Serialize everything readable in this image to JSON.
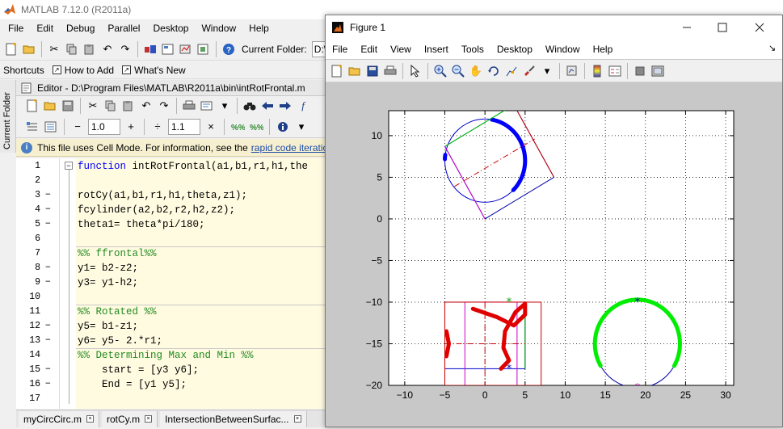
{
  "app": {
    "title": "MATLAB  7.12.0 (R2011a)",
    "menus": [
      "File",
      "Edit",
      "Debug",
      "Parallel",
      "Desktop",
      "Window",
      "Help"
    ],
    "current_folder_label": "Current Folder:",
    "current_folder_value": "D:\\"
  },
  "shortcuts": {
    "label": "Shortcuts",
    "how_to_add": "How to Add",
    "whats_new": "What's New"
  },
  "side_panel": {
    "label": "Current Folder"
  },
  "editor": {
    "title": "Editor - D:\\Program Files\\MATLAB\\R2011a\\bin\\intRotFrontal.m",
    "cell_minus": "−",
    "cell_value_1": "1.0",
    "cell_plus": "+",
    "cell_divide": "÷",
    "cell_value_2": "1.1",
    "cell_times": "×",
    "info_text": "This file uses Cell Mode. For information, see the",
    "info_link": "rapid code iteratio",
    "lines": [
      {
        "n": "1",
        "dash": "",
        "code": "function intRotFrontal(a1,b1,r1,h1,the",
        "type": "fn"
      },
      {
        "n": "2",
        "dash": "",
        "code": "",
        "type": "plain"
      },
      {
        "n": "3",
        "dash": "−",
        "code": "rotCy(a1,b1,r1,h1,theta,z1);",
        "type": "plain"
      },
      {
        "n": "4",
        "dash": "−",
        "code": "fcylinder(a2,b2,r2,h2,z2);",
        "type": "plain"
      },
      {
        "n": "5",
        "dash": "−",
        "code": "theta1= theta*pi/180;",
        "type": "plain"
      },
      {
        "n": "6",
        "dash": "",
        "code": "",
        "type": "plain"
      },
      {
        "n": "7",
        "dash": "",
        "code": "%% ffrontal%%",
        "type": "comment"
      },
      {
        "n": "8",
        "dash": "−",
        "code": "y1= b2-z2;",
        "type": "plain"
      },
      {
        "n": "9",
        "dash": "−",
        "code": "y3= y1-h2;",
        "type": "plain"
      },
      {
        "n": "10",
        "dash": "",
        "code": "",
        "type": "plain"
      },
      {
        "n": "11",
        "dash": "",
        "code": "%% Rotated %%",
        "type": "comment"
      },
      {
        "n": "12",
        "dash": "−",
        "code": "y5= b1-z1;",
        "type": "plain"
      },
      {
        "n": "13",
        "dash": "−",
        "code": "y6= y5- 2.*r1;",
        "type": "plain"
      },
      {
        "n": "14",
        "dash": "",
        "code": "%% Determining Max and Min %%",
        "type": "comment"
      },
      {
        "n": "15",
        "dash": "−",
        "code": "    start = [y3 y6];",
        "type": "plain"
      },
      {
        "n": "16",
        "dash": "−",
        "code": "    End = [y1 y5];",
        "type": "plain"
      },
      {
        "n": "17",
        "dash": "",
        "code": "",
        "type": "plain"
      }
    ],
    "tabs": [
      "myCircCirc.m",
      "rotCy.m",
      "IntersectionBetweenSurfac..."
    ]
  },
  "figure": {
    "title": "Figure 1",
    "menus": [
      "File",
      "Edit",
      "View",
      "Insert",
      "Tools",
      "Desktop",
      "Window",
      "Help"
    ],
    "chart_data": {
      "type": "line",
      "xlim": [
        -12,
        31
      ],
      "ylim": [
        -20,
        13
      ],
      "xticks": [
        -10,
        -5,
        0,
        5,
        10,
        15,
        20,
        25,
        30
      ],
      "yticks": [
        10,
        5,
        0,
        -5,
        -10,
        -15,
        -20
      ],
      "grid": "dotted",
      "series": [
        {
          "color": "#0000cc",
          "x_label": "",
          "shape": "circle",
          "center": [
            0,
            7
          ],
          "radius": 5
        },
        {
          "color": "#0000ff",
          "shape": "thick-arc",
          "center": [
            0,
            7
          ],
          "radius": 5,
          "from_deg": 80,
          "to_deg": -45
        },
        {
          "color": "#0000ff",
          "shape": "thick-arc",
          "center": [
            0,
            7
          ],
          "radius": 5,
          "from_deg": 178,
          "to_deg": 172
        },
        {
          "color": "#0000aa",
          "shape": "polygon",
          "points": [
            [
              0,
              0
            ],
            [
              8.6,
              5
            ],
            [
              3.6,
              13.7
            ],
            [
              -5,
              8.7
            ]
          ]
        },
        {
          "color": "#00cc00",
          "shape": "line",
          "points": [
            [
              -5,
              8.7
            ],
            [
              3.6,
              13.7
            ]
          ]
        },
        {
          "color": "#cc00cc",
          "shape": "line",
          "points": [
            [
              -5,
              8.7
            ],
            [
              0,
              0
            ]
          ]
        },
        {
          "color": "#cc0000",
          "shape": "dashdot",
          "points": [
            [
              -3.8,
              3.9
            ],
            [
              6.2,
              9.6
            ]
          ]
        },
        {
          "color": "#cc0000",
          "shape": "line",
          "points": [
            [
              3.6,
              13.7
            ],
            [
              8.6,
              5
            ]
          ]
        },
        {
          "color": "#0000cc",
          "shape": "rect",
          "points": [
            [
              -5,
              -10
            ],
            [
              5,
              -18
            ]
          ]
        },
        {
          "color": "#cc00cc",
          "shape": "rect",
          "points": [
            [
              -2.5,
              -10
            ],
            [
              4,
              -20
            ]
          ]
        },
        {
          "color": "#cc0000",
          "shape": "rect",
          "points": [
            [
              -5,
              -10
            ],
            [
              7,
              -20
            ]
          ]
        },
        {
          "color": "#00aa00",
          "shape": "line",
          "points": [
            [
              5,
              -10
            ],
            [
              5,
              -18
            ]
          ]
        },
        {
          "color": "#cc0000",
          "shape": "dashdot",
          "points": [
            [
              0,
              -10
            ],
            [
              0,
              -20
            ]
          ]
        },
        {
          "color": "#cc0000",
          "shape": "dashdot",
          "points": [
            [
              -5,
              -15
            ],
            [
              5,
              -15
            ]
          ]
        },
        {
          "color": "#e00000",
          "shape": "thick-curve",
          "points": [
            [
              -1.5,
              -10.8
            ],
            [
              1.5,
              -11.8
            ],
            [
              3.6,
              -12.8
            ],
            [
              5,
              -11.5
            ],
            [
              5,
              -10.2
            ],
            [
              3.8,
              -11.2
            ],
            [
              2.5,
              -13.5
            ],
            [
              2.3,
              -15.5
            ],
            [
              3,
              -17
            ],
            [
              2,
              -18
            ]
          ]
        },
        {
          "color": "#e00000",
          "shape": "thick-curve",
          "points": [
            [
              -4.8,
              -13.5
            ],
            [
              -4.5,
              -15
            ],
            [
              -4.8,
              -16.5
            ]
          ]
        },
        {
          "color": "#0000aa",
          "shape": "circle",
          "center": [
            19,
            -15
          ],
          "radius": 5.3
        },
        {
          "color": "#00ee00",
          "shape": "thick-arc",
          "center": [
            19,
            -15
          ],
          "radius": 5.3,
          "from_deg": 88,
          "to_deg": -30
        },
        {
          "color": "#00ee00",
          "shape": "thick-arc",
          "center": [
            19,
            -15
          ],
          "radius": 5.3,
          "from_deg": 92,
          "to_deg": 210
        }
      ],
      "markers": [
        {
          "x": 19,
          "y": -10,
          "color": "#0000aa",
          "symbol": "*"
        },
        {
          "x": 19,
          "y": -20.3,
          "color": "#cc00cc",
          "symbol": "*"
        },
        {
          "x": 3,
          "y": -10,
          "color": "#00aa00",
          "symbol": "*"
        },
        {
          "x": 3,
          "y": -18,
          "color": "#0000aa",
          "symbol": "*"
        }
      ]
    }
  }
}
